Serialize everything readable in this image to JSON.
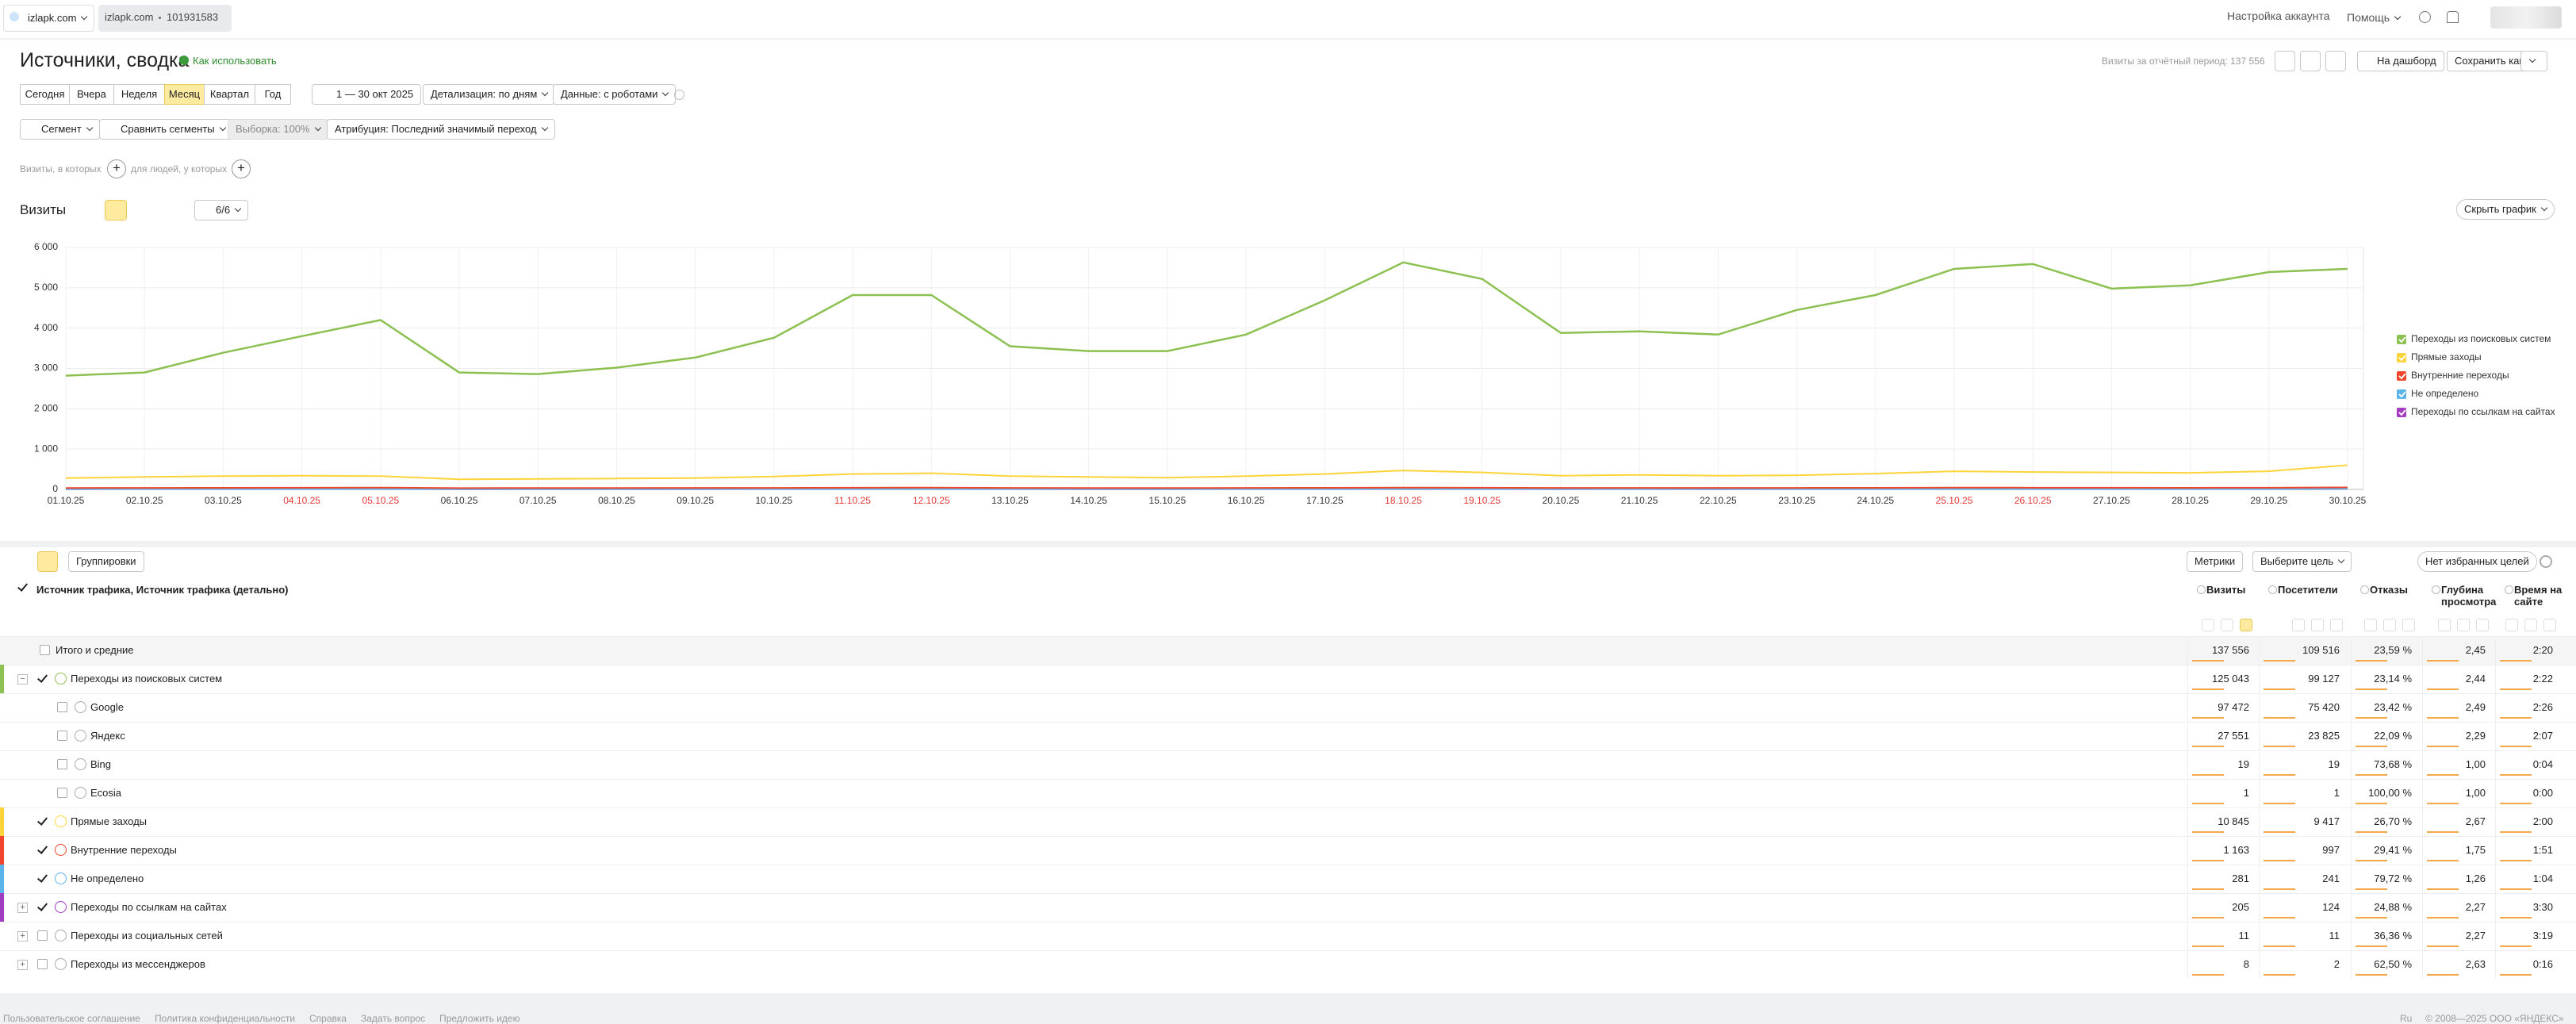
{
  "topbar": {
    "tab_site": "izlapk.com",
    "counter_site": "izlapk.com",
    "counter_id": "101931583",
    "account": "Настройка аккаунта",
    "help": "Помощь"
  },
  "header": {
    "title": "Источники, сводка",
    "how_to": "Как использовать",
    "visits_summary": "Визиты за отчётный период: 137 556",
    "dashboard": "На дашборд",
    "save_as": "Сохранить как"
  },
  "toolbar": {
    "periods": [
      "Сегодня",
      "Вчера",
      "Неделя",
      "Месяц",
      "Квартал",
      "Год"
    ],
    "active_period_index": 3,
    "date_range": "1 — 30 окт 2025",
    "detail": "Детализация: по дням",
    "data": "Данные: с роботами"
  },
  "segments": {
    "segment": "Сегмент",
    "compare": "Сравнить сегменты",
    "sample": "Выборка: 100%",
    "attribution": "Атрибуция: Последний значимый переход",
    "visits_where": "Визиты, в которых",
    "people_where": "для людей, у которых"
  },
  "chart_panel": {
    "label": "Визиты",
    "series_count": "6/6",
    "hide": "Скрыть график"
  },
  "chart_data": {
    "type": "line",
    "categories": [
      "01.10.25",
      "02.10.25",
      "03.10.25",
      "04.10.25",
      "05.10.25",
      "06.10.25",
      "07.10.25",
      "08.10.25",
      "09.10.25",
      "10.10.25",
      "11.10.25",
      "12.10.25",
      "13.10.25",
      "14.10.25",
      "15.10.25",
      "16.10.25",
      "17.10.25",
      "18.10.25",
      "19.10.25",
      "20.10.25",
      "21.10.25",
      "22.10.25",
      "23.10.25",
      "24.10.25",
      "25.10.25",
      "26.10.25",
      "27.10.25",
      "28.10.25",
      "29.10.25",
      "30.10.25"
    ],
    "weekend_color": "#e53935",
    "series": [
      {
        "name": "Переходы из поисковых систем",
        "color": "#8cc152",
        "values": [
          2820,
          2900,
          3390,
          3800,
          4200,
          2900,
          2860,
          3020,
          3270,
          3760,
          4820,
          4820,
          3550,
          3430,
          3430,
          3840,
          4690,
          5630,
          5220,
          3880,
          3920,
          3840,
          4450,
          4820,
          5470,
          5590,
          4980,
          5060,
          5390,
          5470
        ]
      },
      {
        "name": "Прямые заходы",
        "color": "#ffd43b",
        "values": [
          280,
          310,
          330,
          340,
          330,
          250,
          260,
          270,
          280,
          320,
          380,
          400,
          330,
          310,
          290,
          330,
          380,
          470,
          420,
          340,
          360,
          340,
          350,
          390,
          450,
          430,
          420,
          410,
          450,
          600
        ]
      },
      {
        "name": "Внутренние переходы",
        "color": "#f0462d",
        "values": [
          35,
          38,
          40,
          42,
          44,
          33,
          34,
          35,
          36,
          38,
          42,
          44,
          36,
          35,
          34,
          37,
          40,
          45,
          43,
          36,
          37,
          36,
          38,
          40,
          44,
          43,
          41,
          40,
          42,
          50
        ]
      },
      {
        "name": "Не определено",
        "color": "#5ab4e8",
        "values": [
          8,
          9,
          9,
          10,
          10,
          7,
          8,
          8,
          9,
          9,
          10,
          11,
          9,
          9,
          8,
          9,
          10,
          12,
          11,
          9,
          9,
          9,
          9,
          10,
          11,
          11,
          10,
          10,
          11,
          13
        ]
      },
      {
        "name": "Переходы по ссылкам на сайтах",
        "color": "#a23cc0",
        "values": [
          6,
          7,
          7,
          7,
          7,
          5,
          6,
          6,
          6,
          7,
          7,
          8,
          7,
          6,
          6,
          7,
          7,
          8,
          8,
          6,
          7,
          6,
          7,
          7,
          8,
          8,
          7,
          7,
          7,
          9
        ]
      }
    ],
    "ylim": [
      0,
      6000
    ],
    "yticks": [
      0,
      {
        "value": 1000,
        "label": "1 000"
      },
      {
        "value": 2000,
        "label": "2 000"
      },
      {
        "value": 3000,
        "label": "3 000"
      },
      {
        "value": 4000,
        "label": "4 000"
      },
      {
        "value": 5000,
        "label": "5 000"
      },
      {
        "value": 6000,
        "label": "6 000"
      }
    ],
    "grid": true,
    "legend": "right"
  },
  "table": {
    "groupings": "Группировки",
    "metrics": "Метрики",
    "goal": "Выберите цель",
    "favorites": "Нет избранных целей",
    "dimension": "Источник трафика, Источник трафика (детально)",
    "columns": [
      "Визиты",
      "Посетители",
      "Отказы",
      "Глубина просмотра",
      "Время на сайте"
    ],
    "rows": [
      {
        "name": "Итого и средние",
        "level": 0,
        "checked": false,
        "cells": [
          "137 556",
          "109 516",
          "23,59 %",
          "2,45",
          "2:20"
        ]
      },
      {
        "name": "Переходы из поисковых систем",
        "level": 1,
        "checked": true,
        "color": "#8cc152",
        "expander": "open",
        "cells": [
          "125 043",
          "99 127",
          "23,14 %",
          "2,44",
          "2:22"
        ]
      },
      {
        "name": "Google",
        "level": 2,
        "checked": false,
        "cells": [
          "97 472",
          "75 420",
          "23,42 %",
          "2,49",
          "2:26"
        ]
      },
      {
        "name": "Яндекс",
        "level": 2,
        "checked": false,
        "cells": [
          "27 551",
          "23 825",
          "22,09 %",
          "2,29",
          "2:07"
        ]
      },
      {
        "name": "Bing",
        "level": 2,
        "checked": false,
        "cells": [
          "19",
          "19",
          "73,68 %",
          "1,00",
          "0:04"
        ]
      },
      {
        "name": "Ecosia",
        "level": 2,
        "checked": false,
        "cells": [
          "1",
          "1",
          "100,00 %",
          "1,00",
          "0:00"
        ]
      },
      {
        "name": "Прямые заходы",
        "level": 1,
        "checked": true,
        "color": "#ffd43b",
        "cells": [
          "10 845",
          "9 417",
          "26,70 %",
          "2,67",
          "2:00"
        ]
      },
      {
        "name": "Внутренние переходы",
        "level": 1,
        "checked": true,
        "color": "#f0462d",
        "cells": [
          "1 163",
          "997",
          "29,41 %",
          "1,75",
          "1:51"
        ]
      },
      {
        "name": "Не определено",
        "level": 1,
        "checked": true,
        "color": "#5ab4e8",
        "cells": [
          "281",
          "241",
          "79,72 %",
          "1,26",
          "1:04"
        ]
      },
      {
        "name": "Переходы по ссылкам на сайтах",
        "level": 1,
        "checked": true,
        "color": "#a23cc0",
        "expander": "closed",
        "cells": [
          "205",
          "124",
          "24,88 %",
          "2,27",
          "3:30"
        ]
      },
      {
        "name": "Переходы из социальных сетей",
        "level": 1,
        "checked": false,
        "expander": "closed",
        "cells": [
          "11",
          "11",
          "36,36 %",
          "2,27",
          "3:19"
        ]
      },
      {
        "name": "Переходы из мессенджеров",
        "level": 1,
        "checked": false,
        "expander": "closed",
        "cells": [
          "8",
          "2",
          "62,50 %",
          "2,63",
          "0:16"
        ]
      }
    ]
  },
  "footer": {
    "links": [
      "Пользовательское соглашение",
      "Политика конфиденциальности",
      "Справка",
      "Задать вопрос",
      "Предложить идею"
    ],
    "lang": "Ru",
    "copyright": "© 2008—2025 ООО «ЯНДЕКС»"
  }
}
